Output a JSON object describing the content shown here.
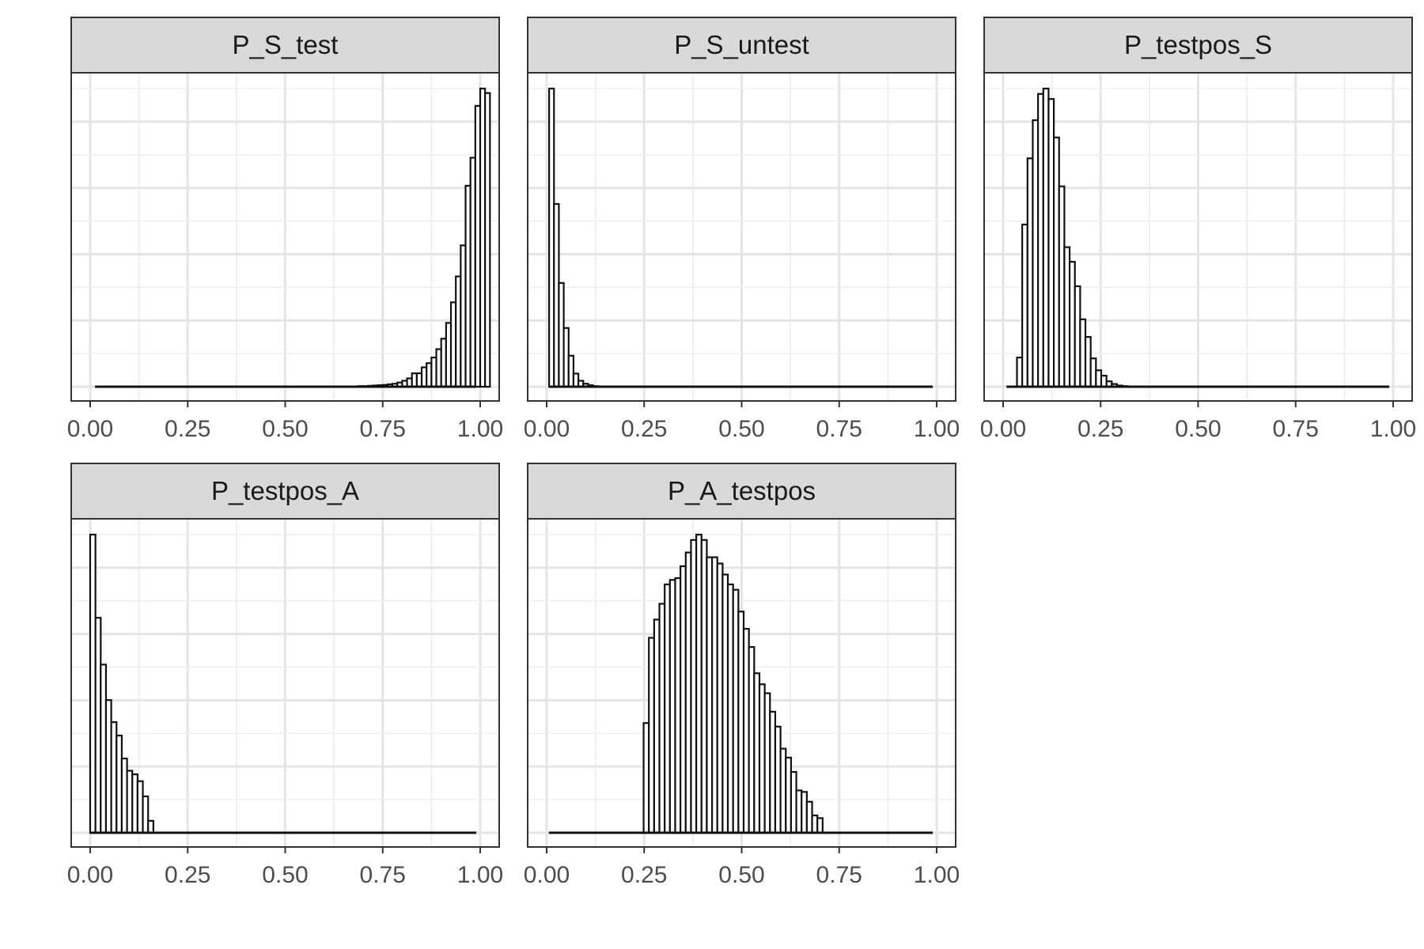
{
  "chart_data": [
    {
      "type": "histogram",
      "title": "P_S_test",
      "xlim": [
        0,
        1
      ],
      "x_ticks": [
        "0.00",
        "0.25",
        "0.50",
        "0.75",
        "1.00"
      ],
      "bin_width": 0.0125,
      "x_start": 0.0125,
      "values": [
        0,
        0,
        0,
        0,
        0,
        0,
        0,
        0,
        0,
        0,
        0,
        0,
        0,
        0,
        0,
        0,
        0,
        0,
        0,
        0,
        0,
        0,
        0,
        0,
        0,
        0,
        0,
        0,
        0,
        0,
        0,
        0,
        0,
        0,
        0,
        0,
        0,
        0,
        0,
        0,
        0,
        0,
        0,
        0,
        0,
        0,
        0,
        0,
        0,
        0.001,
        0.001,
        0.001,
        0.001,
        0.001,
        0.002,
        0.002,
        0.003,
        0.004,
        0.005,
        0.006,
        0.008,
        0.01,
        0.014,
        0.02,
        0.028,
        0.045,
        0.045,
        0.065,
        0.079,
        0.098,
        0.126,
        0.161,
        0.214,
        0.283,
        0.37,
        0.474,
        0.674,
        0.768,
        0.942,
        1.0,
        0.985
      ]
    },
    {
      "type": "histogram",
      "title": "P_S_untest",
      "xlim": [
        0,
        1
      ],
      "x_ticks": [
        "0.00",
        "0.25",
        "0.50",
        "0.75",
        "1.00"
      ],
      "bin_width": 0.0125,
      "x_start": 0.0063,
      "values": [
        1.0,
        0.613,
        0.348,
        0.197,
        0.104,
        0.044,
        0.02,
        0.01,
        0.005,
        0.002,
        0.001,
        0,
        0,
        0,
        0,
        0,
        0,
        0,
        0,
        0,
        0,
        0,
        0,
        0,
        0,
        0,
        0,
        0,
        0,
        0,
        0,
        0,
        0,
        0,
        0,
        0,
        0,
        0,
        0,
        0,
        0,
        0,
        0,
        0,
        0,
        0,
        0,
        0,
        0,
        0,
        0,
        0,
        0,
        0,
        0,
        0,
        0,
        0,
        0,
        0,
        0,
        0,
        0,
        0,
        0,
        0,
        0,
        0,
        0,
        0,
        0,
        0,
        0,
        0,
        0,
        0,
        0,
        0,
        0,
        0,
        0
      ]
    },
    {
      "type": "histogram",
      "title": "P_testpos_S",
      "xlim": [
        0,
        1
      ],
      "x_ticks": [
        "0.00",
        "0.25",
        "0.50",
        "0.75",
        "1.00"
      ],
      "bin_width": 0.0135,
      "x_start": 0.0085,
      "values": [
        0,
        0,
        0.098,
        0.544,
        0.766,
        0.894,
        0.982,
        1.0,
        0.965,
        0.836,
        0.672,
        0.468,
        0.419,
        0.337,
        0.226,
        0.167,
        0.095,
        0.055,
        0.037,
        0.018,
        0.009,
        0.004,
        0.002,
        0.001,
        0,
        0,
        0,
        0,
        0,
        0,
        0,
        0,
        0,
        0,
        0,
        0,
        0,
        0,
        0,
        0,
        0,
        0,
        0,
        0,
        0,
        0,
        0,
        0,
        0,
        0,
        0,
        0,
        0,
        0,
        0,
        0,
        0,
        0,
        0,
        0,
        0,
        0,
        0,
        0,
        0,
        0,
        0,
        0,
        0,
        0,
        0,
        0,
        0,
        0
      ]
    },
    {
      "type": "histogram",
      "title": "P_testpos_A",
      "xlim": [
        0,
        1
      ],
      "x_ticks": [
        "0.00",
        "0.25",
        "0.50",
        "0.75",
        "1.00"
      ],
      "bin_width": 0.0135,
      "x_start": 0.0,
      "values": [
        1.0,
        0.721,
        0.564,
        0.445,
        0.371,
        0.326,
        0.249,
        0.208,
        0.196,
        0.173,
        0.122,
        0.04,
        0,
        0,
        0,
        0,
        0,
        0,
        0,
        0,
        0,
        0,
        0,
        0,
        0,
        0,
        0,
        0,
        0,
        0,
        0,
        0,
        0,
        0,
        0,
        0,
        0,
        0,
        0,
        0,
        0,
        0,
        0,
        0,
        0,
        0,
        0,
        0,
        0,
        0,
        0,
        0,
        0,
        0,
        0,
        0,
        0,
        0,
        0,
        0,
        0,
        0,
        0,
        0,
        0,
        0,
        0,
        0,
        0,
        0,
        0,
        0,
        0,
        0
      ]
    },
    {
      "type": "histogram",
      "title": "P_A_testpos",
      "xlim": [
        0,
        1
      ],
      "x_ticks": [
        "0.00",
        "0.25",
        "0.50",
        "0.75",
        "1.00"
      ],
      "bin_width": 0.0135,
      "x_start": 0.0056,
      "values": [
        0,
        0,
        0,
        0,
        0,
        0,
        0,
        0,
        0,
        0,
        0,
        0,
        0,
        0,
        0,
        0,
        0,
        0,
        0.368,
        0.654,
        0.715,
        0.768,
        0.833,
        0.848,
        0.854,
        0.894,
        0.94,
        0.982,
        1.0,
        0.982,
        0.924,
        0.924,
        0.903,
        0.866,
        0.833,
        0.815,
        0.742,
        0.684,
        0.623,
        0.535,
        0.498,
        0.468,
        0.406,
        0.356,
        0.282,
        0.252,
        0.204,
        0.142,
        0.137,
        0.104,
        0.058,
        0.049,
        0,
        0,
        0,
        0,
        0,
        0,
        0,
        0,
        0,
        0,
        0,
        0,
        0,
        0,
        0,
        0,
        0,
        0,
        0,
        0,
        0,
        0
      ]
    }
  ],
  "layout_rows": [
    3,
    2
  ]
}
